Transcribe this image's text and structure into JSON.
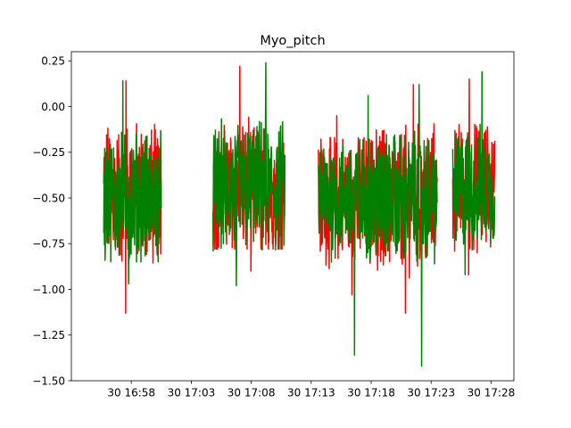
{
  "chart_data": {
    "type": "line",
    "title": "Myo_pitch",
    "xlabel": "",
    "ylabel": "",
    "ylim": [
      -1.5,
      0.3
    ],
    "yticks": [
      -1.5,
      -1.25,
      -1.0,
      -0.75,
      -0.5,
      -0.25,
      0.0,
      0.25
    ],
    "ytick_labels": [
      "−1.50",
      "−1.25",
      "−1.00",
      "−0.75",
      "−0.50",
      "−0.25",
      "0.00",
      "0.25"
    ],
    "xlim_minutes": [
      "16:53.0",
      "17:29.9"
    ],
    "xticks": [
      "16:58",
      "17:03",
      "17:08",
      "17:13",
      "17:18",
      "17:23",
      "17:28"
    ],
    "xtick_labels": [
      "30 16:58",
      "30 17:03",
      "30 17:08",
      "30 17:13",
      "30 17:18",
      "30 17:23",
      "30 17:28"
    ],
    "grid": false,
    "series": [
      {
        "color": "#ff0000",
        "segments": [
          {
            "start": "16:55.7",
            "end": "17:00.5",
            "min": -1.13,
            "max": 0.14,
            "mean": -0.48,
            "amplitude": 0.33
          },
          {
            "start": "17:04.8",
            "end": "17:10.8",
            "min": -0.9,
            "max": 0.22,
            "mean": -0.45,
            "amplitude": 0.3
          },
          {
            "start": "17:13.6",
            "end": "17:19.3",
            "min": -1.03,
            "max": -0.05,
            "mean": -0.5,
            "amplitude": 0.3
          },
          {
            "start": "17:18.4",
            "end": "17:23.5",
            "min": -1.13,
            "max": 0.12,
            "mean": -0.5,
            "amplitude": 0.33
          },
          {
            "start": "17:24.8",
            "end": "17:28.3",
            "min": -0.92,
            "max": 0.15,
            "mean": -0.45,
            "amplitude": 0.3
          }
        ]
      },
      {
        "color": "#008000",
        "segments": [
          {
            "start": "16:55.7",
            "end": "17:00.5",
            "min": -0.97,
            "max": 0.14,
            "mean": -0.5,
            "amplitude": 0.3
          },
          {
            "start": "17:04.8",
            "end": "17:10.8",
            "min": -0.98,
            "max": 0.24,
            "mean": -0.45,
            "amplitude": 0.3
          },
          {
            "start": "17:13.6",
            "end": "17:19.3",
            "min": -1.36,
            "max": 0.06,
            "mean": -0.5,
            "amplitude": 0.28
          },
          {
            "start": "17:18.4",
            "end": "17:23.5",
            "min": -1.42,
            "max": 0.12,
            "mean": -0.5,
            "amplitude": 0.3
          },
          {
            "start": "17:24.8",
            "end": "17:28.3",
            "min": -0.92,
            "max": 0.19,
            "mean": -0.45,
            "amplitude": 0.28
          }
        ]
      }
    ]
  }
}
